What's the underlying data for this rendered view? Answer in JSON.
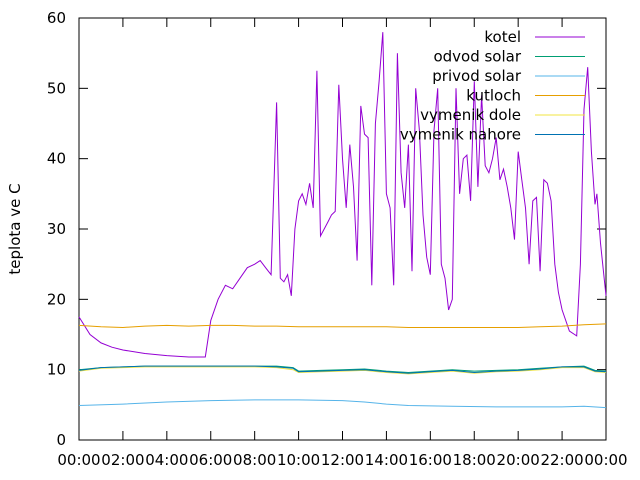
{
  "chart_data": {
    "type": "line",
    "xlabel": "",
    "ylabel": "teplota ve C",
    "xlim": [
      "00:00",
      "24:00"
    ],
    "ylim": [
      0,
      60
    ],
    "x_ticks": [
      "00:00",
      "02:00",
      "04:00",
      "06:00",
      "08:00",
      "10:00",
      "12:00",
      "14:00",
      "16:00",
      "18:00",
      "20:00",
      "22:00",
      "00:00"
    ],
    "y_ticks": [
      0,
      10,
      20,
      30,
      40,
      50,
      60
    ],
    "grid": false,
    "legend_position": "top-right",
    "series": [
      {
        "name": "kotel",
        "color": "#9400d3",
        "points": [
          [
            "00:00",
            17.5
          ],
          [
            "00:30",
            15
          ],
          [
            "01:00",
            13.8
          ],
          [
            "01:30",
            13.2
          ],
          [
            "02:00",
            12.8
          ],
          [
            "03:00",
            12.3
          ],
          [
            "04:00",
            12.0
          ],
          [
            "05:00",
            11.8
          ],
          [
            "05:45",
            11.8
          ],
          [
            "06:00",
            17
          ],
          [
            "06:20",
            20
          ],
          [
            "06:40",
            22
          ],
          [
            "07:00",
            21.5
          ],
          [
            "07:20",
            23
          ],
          [
            "07:40",
            24.5
          ],
          [
            "08:00",
            25
          ],
          [
            "08:15",
            25.5
          ],
          [
            "08:30",
            24.5
          ],
          [
            "08:45",
            23.5
          ],
          [
            "09:00",
            48
          ],
          [
            "09:10",
            23
          ],
          [
            "09:20",
            22.5
          ],
          [
            "09:30",
            23.5
          ],
          [
            "09:40",
            20.5
          ],
          [
            "09:50",
            30
          ],
          [
            "10:00",
            34
          ],
          [
            "10:10",
            35
          ],
          [
            "10:20",
            33.5
          ],
          [
            "10:30",
            36.5
          ],
          [
            "10:40",
            33
          ],
          [
            "10:50",
            52.5
          ],
          [
            "11:00",
            29
          ],
          [
            "11:10",
            30
          ],
          [
            "11:20",
            31
          ],
          [
            "11:30",
            32
          ],
          [
            "11:40",
            32.5
          ],
          [
            "11:50",
            50.5
          ],
          [
            "12:00",
            40
          ],
          [
            "12:10",
            33
          ],
          [
            "12:20",
            42
          ],
          [
            "12:30",
            36
          ],
          [
            "12:40",
            25.5
          ],
          [
            "12:50",
            47.5
          ],
          [
            "13:00",
            43.5
          ],
          [
            "13:10",
            43
          ],
          [
            "13:20",
            22
          ],
          [
            "13:30",
            45
          ],
          [
            "13:40",
            51
          ],
          [
            "13:50",
            58
          ],
          [
            "14:00",
            35
          ],
          [
            "14:10",
            33
          ],
          [
            "14:20",
            22
          ],
          [
            "14:30",
            55
          ],
          [
            "14:40",
            38
          ],
          [
            "14:50",
            33
          ],
          [
            "15:00",
            42
          ],
          [
            "15:10",
            24
          ],
          [
            "15:20",
            50
          ],
          [
            "15:30",
            44
          ],
          [
            "15:40",
            32
          ],
          [
            "15:50",
            26
          ],
          [
            "16:00",
            23.5
          ],
          [
            "16:10",
            44
          ],
          [
            "16:20",
            50
          ],
          [
            "16:30",
            25
          ],
          [
            "16:40",
            23
          ],
          [
            "16:50",
            18.5
          ],
          [
            "17:00",
            20
          ],
          [
            "17:10",
            50
          ],
          [
            "17:20",
            35
          ],
          [
            "17:30",
            40
          ],
          [
            "17:40",
            40.5
          ],
          [
            "17:50",
            34
          ],
          [
            "18:00",
            51
          ],
          [
            "18:10",
            36
          ],
          [
            "18:20",
            49
          ],
          [
            "18:30",
            39
          ],
          [
            "18:40",
            38
          ],
          [
            "18:50",
            40
          ],
          [
            "19:00",
            43
          ],
          [
            "19:10",
            37
          ],
          [
            "19:20",
            38.5
          ],
          [
            "19:30",
            36
          ],
          [
            "19:40",
            33
          ],
          [
            "19:50",
            28.5
          ],
          [
            "20:00",
            41
          ],
          [
            "20:10",
            37
          ],
          [
            "20:20",
            33
          ],
          [
            "20:30",
            25
          ],
          [
            "20:40",
            34
          ],
          [
            "20:50",
            34.5
          ],
          [
            "21:00",
            24
          ],
          [
            "21:10",
            37
          ],
          [
            "21:20",
            36.5
          ],
          [
            "21:30",
            34
          ],
          [
            "21:40",
            25
          ],
          [
            "21:50",
            21
          ],
          [
            "22:00",
            18.5
          ],
          [
            "22:20",
            15.5
          ],
          [
            "22:40",
            14.8
          ],
          [
            "22:50",
            25
          ],
          [
            "23:00",
            47
          ],
          [
            "23:10",
            53
          ],
          [
            "23:20",
            41
          ],
          [
            "23:30",
            33.5
          ],
          [
            "23:35",
            35
          ],
          [
            "23:45",
            28
          ],
          [
            "24:00",
            20.5
          ]
        ]
      },
      {
        "name": "odvod solar",
        "color": "#009e73",
        "points": [
          [
            "00:00",
            10
          ],
          [
            "01:00",
            10.3
          ],
          [
            "02:00",
            10.4
          ],
          [
            "03:00",
            10.5
          ],
          [
            "04:00",
            10.5
          ],
          [
            "05:00",
            10.5
          ],
          [
            "06:00",
            10.5
          ],
          [
            "07:00",
            10.5
          ],
          [
            "08:00",
            10.5
          ],
          [
            "09:00",
            10.5
          ],
          [
            "09:45",
            10.3
          ],
          [
            "10:00",
            9.8
          ],
          [
            "11:00",
            9.9
          ],
          [
            "12:00",
            10
          ],
          [
            "13:00",
            10.1
          ],
          [
            "14:00",
            9.8
          ],
          [
            "15:00",
            9.6
          ],
          [
            "16:00",
            9.8
          ],
          [
            "17:00",
            10
          ],
          [
            "18:00",
            9.8
          ],
          [
            "19:00",
            9.9
          ],
          [
            "20:00",
            10
          ],
          [
            "21:00",
            10.2
          ],
          [
            "22:00",
            10.4
          ],
          [
            "23:00",
            10.5
          ],
          [
            "23:30",
            9.9
          ],
          [
            "24:00",
            9.8
          ]
        ]
      },
      {
        "name": "privod solar",
        "color": "#56b4e9",
        "points": [
          [
            "00:00",
            4.9
          ],
          [
            "02:00",
            5.1
          ],
          [
            "04:00",
            5.4
          ],
          [
            "06:00",
            5.6
          ],
          [
            "08:00",
            5.7
          ],
          [
            "10:00",
            5.7
          ],
          [
            "12:00",
            5.6
          ],
          [
            "13:00",
            5.4
          ],
          [
            "14:00",
            5.1
          ],
          [
            "15:00",
            4.9
          ],
          [
            "17:00",
            4.8
          ],
          [
            "19:00",
            4.7
          ],
          [
            "21:00",
            4.7
          ],
          [
            "22:00",
            4.7
          ],
          [
            "23:00",
            4.8
          ],
          [
            "24:00",
            4.6
          ]
        ]
      },
      {
        "name": "kutloch",
        "color": "#e69f00",
        "points": [
          [
            "00:00",
            16.3
          ],
          [
            "01:00",
            16.1
          ],
          [
            "02:00",
            16
          ],
          [
            "03:00",
            16.2
          ],
          [
            "04:00",
            16.3
          ],
          [
            "05:00",
            16.2
          ],
          [
            "06:00",
            16.3
          ],
          [
            "07:00",
            16.3
          ],
          [
            "08:00",
            16.2
          ],
          [
            "09:00",
            16.2
          ],
          [
            "10:00",
            16.1
          ],
          [
            "11:00",
            16.1
          ],
          [
            "12:00",
            16.1
          ],
          [
            "13:00",
            16.1
          ],
          [
            "14:00",
            16.1
          ],
          [
            "15:00",
            16
          ],
          [
            "16:00",
            16
          ],
          [
            "17:00",
            16
          ],
          [
            "18:00",
            16
          ],
          [
            "19:00",
            16
          ],
          [
            "20:00",
            16
          ],
          [
            "21:00",
            16.1
          ],
          [
            "22:00",
            16.2
          ],
          [
            "23:00",
            16.4
          ],
          [
            "24:00",
            16.5
          ]
        ]
      },
      {
        "name": "vymenik dole",
        "color": "#f0e442",
        "points": [
          [
            "00:00",
            9.8
          ],
          [
            "01:00",
            10.2
          ],
          [
            "02:00",
            10.3
          ],
          [
            "03:00",
            10.4
          ],
          [
            "04:00",
            10.4
          ],
          [
            "05:00",
            10.4
          ],
          [
            "06:00",
            10.4
          ],
          [
            "07:00",
            10.4
          ],
          [
            "08:00",
            10.4
          ],
          [
            "09:00",
            10.3
          ],
          [
            "09:45",
            10
          ],
          [
            "10:00",
            9.6
          ],
          [
            "11:00",
            9.7
          ],
          [
            "12:00",
            9.8
          ],
          [
            "13:00",
            9.9
          ],
          [
            "14:00",
            9.6
          ],
          [
            "15:00",
            9.4
          ],
          [
            "16:00",
            9.6
          ],
          [
            "17:00",
            9.8
          ],
          [
            "18:00",
            9.5
          ],
          [
            "19:00",
            9.7
          ],
          [
            "20:00",
            9.8
          ],
          [
            "21:00",
            10
          ],
          [
            "22:00",
            10.3
          ],
          [
            "23:00",
            10.3
          ],
          [
            "23:30",
            9.7
          ],
          [
            "24:00",
            9.6
          ]
        ]
      },
      {
        "name": "vymenik nahore",
        "color": "#0072b2",
        "points": [
          [
            "00:00",
            9.9
          ],
          [
            "01:00",
            10.3
          ],
          [
            "02:00",
            10.4
          ],
          [
            "03:00",
            10.5
          ],
          [
            "04:00",
            10.5
          ],
          [
            "05:00",
            10.5
          ],
          [
            "06:00",
            10.5
          ],
          [
            "07:00",
            10.5
          ],
          [
            "08:00",
            10.5
          ],
          [
            "09:00",
            10.4
          ],
          [
            "09:45",
            10.2
          ],
          [
            "10:00",
            9.7
          ],
          [
            "11:00",
            9.8
          ],
          [
            "12:00",
            9.9
          ],
          [
            "13:00",
            10
          ],
          [
            "14:00",
            9.7
          ],
          [
            "15:00",
            9.5
          ],
          [
            "16:00",
            9.7
          ],
          [
            "17:00",
            9.9
          ],
          [
            "18:00",
            9.6
          ],
          [
            "19:00",
            9.8
          ],
          [
            "20:00",
            9.9
          ],
          [
            "21:00",
            10.1
          ],
          [
            "22:00",
            10.4
          ],
          [
            "23:00",
            10.4
          ],
          [
            "23:30",
            9.8
          ],
          [
            "24:00",
            9.7
          ]
        ]
      }
    ]
  }
}
